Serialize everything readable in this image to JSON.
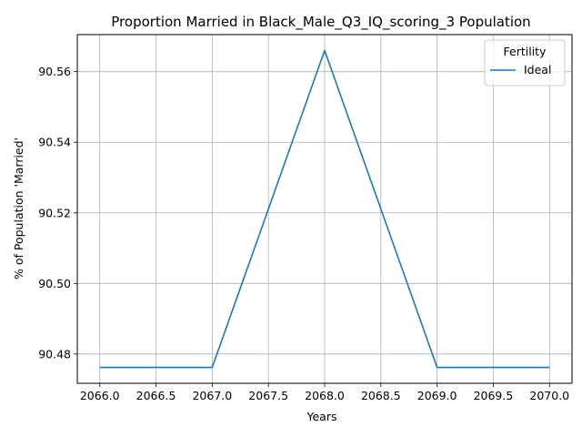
{
  "chart_data": {
    "type": "line",
    "title": "Proportion Married in Black_Male_Q3_IQ_scoring_3 Population",
    "xlabel": "Years",
    "ylabel": "% of Population 'Married'",
    "x": [
      2066,
      2067,
      2068,
      2069,
      2070
    ],
    "series": [
      {
        "name": "Ideal",
        "values": [
          90.4762,
          90.4762,
          90.566,
          90.4762,
          90.4762
        ],
        "color": "#1f77b4"
      }
    ],
    "xlim": [
      2065.8,
      2070.2
    ],
    "ylim": [
      90.4717,
      90.5705
    ],
    "xticks": [
      "2066.0",
      "2066.5",
      "2067.0",
      "2067.5",
      "2068.0",
      "2068.5",
      "2069.0",
      "2069.5",
      "2070.0"
    ],
    "yticks": [
      "90.48",
      "90.50",
      "90.52",
      "90.54",
      "90.56"
    ],
    "grid": true,
    "legend": {
      "title": "Fertility",
      "placement": "top-right"
    }
  }
}
